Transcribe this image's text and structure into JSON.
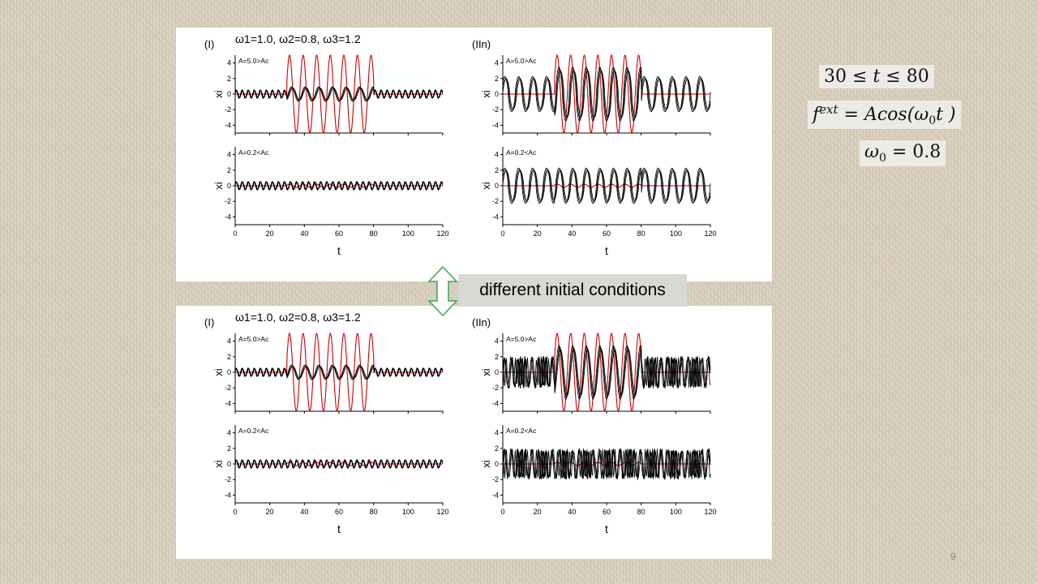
{
  "slide": {
    "page_number": "9"
  },
  "formulas": {
    "time_window": {
      "lhs": "30",
      "rel": "≤",
      "var": "t",
      "rhs": "80"
    },
    "force": {
      "f": "f",
      "sup": "ext",
      "eq": "= ",
      "rhs": "Acos(",
      "w": "ω",
      "sub": "0",
      "tail": "t )"
    },
    "omega": {
      "w": "ω",
      "sub": "0",
      "eq": "= 0.8"
    }
  },
  "callout": {
    "text": "different initial conditions"
  },
  "colors": {
    "driver": "#cc0000",
    "response": "#000000",
    "axis": "#000000"
  },
  "chart_data": [
    {
      "id": "top",
      "type": "line",
      "title": "ω1=1.0, ω2=0.8, ω3=1.2",
      "panels": [
        {
          "tag": "(I)",
          "label": "A=5.0>Ac",
          "A": 5.0,
          "response_amp_in": 0.85,
          "response_amp_out": 0.5,
          "response_omega": "driven",
          "noisy": false
        },
        {
          "tag": "",
          "label": "A=0.2<Ac",
          "A": 0.2,
          "response_amp_in": 0.5,
          "response_amp_out": 0.5,
          "response_omega": "fixed",
          "noisy": false
        },
        {
          "tag": "(IIn)",
          "label": "A=5.0>Ac",
          "A": 5.0,
          "response_amp_in": 3.2,
          "response_amp_out": 2.1,
          "response_omega": "slow",
          "noisy": false
        },
        {
          "tag": "",
          "label": "A=0.2<Ac",
          "A": 0.2,
          "response_amp_in": 2.1,
          "response_amp_out": 2.1,
          "response_omega": "slow",
          "noisy": false
        }
      ],
      "x": {
        "label": "t",
        "lim": [
          0,
          120
        ],
        "ticks": [
          "0",
          "20",
          "40",
          "60",
          "80",
          "100",
          "120"
        ]
      },
      "y": {
        "label": "xi",
        "lim": [
          -5,
          5
        ],
        "ticks": [
          "4",
          "2",
          "0",
          "-2",
          "-4"
        ]
      },
      "forcing": {
        "t_on": 30,
        "t_off": 80,
        "omega0": 0.8
      }
    },
    {
      "id": "bottom",
      "type": "line",
      "title": "ω1=1.0, ω2=0.8, ω3=1.2",
      "panels": [
        {
          "tag": "(I)",
          "label": "A=5.0>Ac",
          "A": 5.0,
          "response_amp_in": 0.85,
          "response_amp_out": 0.5,
          "response_omega": "driven",
          "noisy": false
        },
        {
          "tag": "",
          "label": "A=0.2<Ac",
          "A": 0.2,
          "response_amp_in": 0.5,
          "response_amp_out": 0.5,
          "response_omega": "fixed",
          "noisy": false
        },
        {
          "tag": "(IIn)",
          "label": "A=5.0>Ac",
          "A": 5.0,
          "response_amp_in": 3.2,
          "response_amp_out": 2.1,
          "response_omega": "slow",
          "noisy": true
        },
        {
          "tag": "",
          "label": "A=0.2<Ac",
          "A": 0.2,
          "response_amp_in": 2.0,
          "response_amp_out": 2.0,
          "response_omega": "slow",
          "noisy": true
        }
      ],
      "x": {
        "label": "t",
        "lim": [
          0,
          120
        ],
        "ticks": [
          "0",
          "20",
          "40",
          "60",
          "80",
          "100",
          "120"
        ]
      },
      "y": {
        "label": "xi",
        "lim": [
          -5,
          5
        ],
        "ticks": [
          "4",
          "2",
          "0",
          "-2",
          "-4"
        ]
      },
      "forcing": {
        "t_on": 30,
        "t_off": 80,
        "omega0": 0.8
      }
    }
  ]
}
